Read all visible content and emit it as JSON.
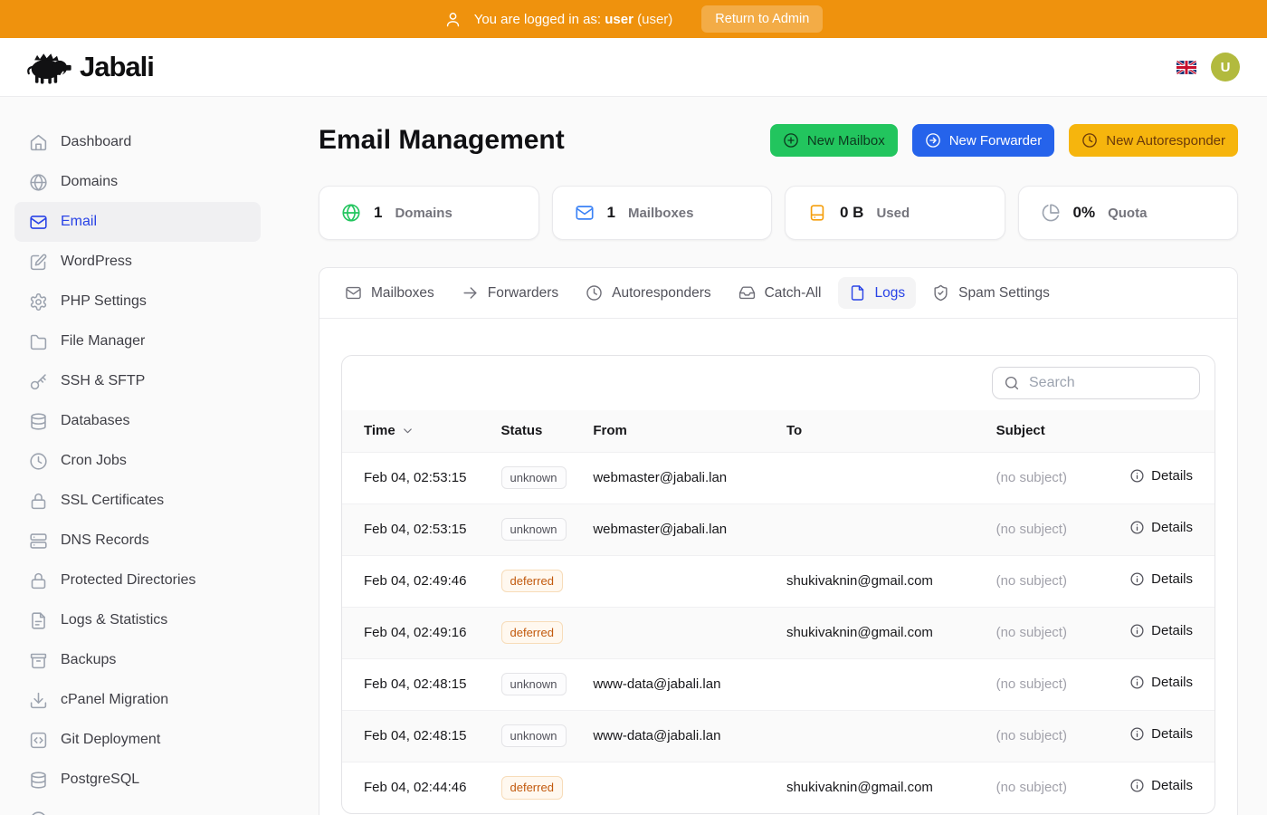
{
  "topbar": {
    "login_prefix": "You are logged in as:",
    "username": "user",
    "role": "(user)",
    "return_button": "Return to Admin"
  },
  "header": {
    "brand": "Jabali",
    "language_flag": "uk-flag",
    "avatar_initial": "U"
  },
  "sidebar": {
    "items": [
      {
        "label": "Dashboard",
        "icon": "home",
        "active": false
      },
      {
        "label": "Domains",
        "icon": "globe",
        "active": false
      },
      {
        "label": "Email",
        "icon": "mail",
        "active": true
      },
      {
        "label": "WordPress",
        "icon": "square-pen",
        "active": false
      },
      {
        "label": "PHP Settings",
        "icon": "settings",
        "active": false
      },
      {
        "label": "File Manager",
        "icon": "folder",
        "active": false
      },
      {
        "label": "SSH & SFTP",
        "icon": "key",
        "active": false
      },
      {
        "label": "Databases",
        "icon": "database",
        "active": false
      },
      {
        "label": "Cron Jobs",
        "icon": "clock",
        "active": false
      },
      {
        "label": "SSL Certificates",
        "icon": "lock",
        "active": false
      },
      {
        "label": "DNS Records",
        "icon": "server",
        "active": false
      },
      {
        "label": "Protected Directories",
        "icon": "lock",
        "active": false
      },
      {
        "label": "Logs & Statistics",
        "icon": "file-text",
        "active": false
      },
      {
        "label": "Backups",
        "icon": "archive",
        "active": false
      },
      {
        "label": "cPanel Migration",
        "icon": "download",
        "active": false
      },
      {
        "label": "Git Deployment",
        "icon": "code",
        "active": false
      },
      {
        "label": "PostgreSQL",
        "icon": "database",
        "active": false
      },
      {
        "label": "",
        "icon": "circle",
        "active": false
      }
    ]
  },
  "main": {
    "title": "Email Management",
    "actions": [
      {
        "label": "New Mailbox",
        "icon": "circle-plus",
        "color": "green"
      },
      {
        "label": "New Forwarder",
        "icon": "circle-arrow-right",
        "color": "blue"
      },
      {
        "label": "New Autoresponder",
        "icon": "clock",
        "color": "amber"
      }
    ],
    "stats": [
      {
        "value": "1",
        "label": "Domains",
        "icon": "globe",
        "icon_color": "#22c55e"
      },
      {
        "value": "1",
        "label": "Mailboxes",
        "icon": "mail",
        "icon_color": "#3b82f6"
      },
      {
        "value": "0 B",
        "label": "Used",
        "icon": "hard-drive",
        "icon_color": "#f59e0b"
      },
      {
        "value": "0%",
        "label": "Quota",
        "icon": "pie",
        "icon_color": "#9ca3af"
      }
    ],
    "tabs": [
      {
        "label": "Mailboxes",
        "icon": "mail",
        "active": false
      },
      {
        "label": "Forwarders",
        "icon": "arrow-right",
        "active": false
      },
      {
        "label": "Autoresponders",
        "icon": "clock",
        "active": false
      },
      {
        "label": "Catch-All",
        "icon": "inbox",
        "active": false
      },
      {
        "label": "Logs",
        "icon": "file",
        "active": true
      },
      {
        "label": "Spam Settings",
        "icon": "shield-check",
        "active": false
      }
    ],
    "search_placeholder": "Search",
    "table": {
      "columns": [
        "Time",
        "Status",
        "From",
        "To",
        "Subject"
      ],
      "details_label": "Details",
      "rows": [
        {
          "time": "Feb 04, 02:53:15",
          "status": "unknown",
          "from": "webmaster@jabali.lan",
          "to": "",
          "subject": "(no subject)"
        },
        {
          "time": "Feb 04, 02:53:15",
          "status": "unknown",
          "from": "webmaster@jabali.lan",
          "to": "",
          "subject": "(no subject)"
        },
        {
          "time": "Feb 04, 02:49:46",
          "status": "deferred",
          "from": "",
          "to": "shukivaknin@gmail.com",
          "subject": "(no subject)"
        },
        {
          "time": "Feb 04, 02:49:16",
          "status": "deferred",
          "from": "",
          "to": "shukivaknin@gmail.com",
          "subject": "(no subject)"
        },
        {
          "time": "Feb 04, 02:48:15",
          "status": "unknown",
          "from": "www-data@jabali.lan",
          "to": "",
          "subject": "(no subject)"
        },
        {
          "time": "Feb 04, 02:48:15",
          "status": "unknown",
          "from": "www-data@jabali.lan",
          "to": "",
          "subject": "(no subject)"
        },
        {
          "time": "Feb 04, 02:44:46",
          "status": "deferred",
          "from": "",
          "to": "shukivaknin@gmail.com",
          "subject": "(no subject)"
        }
      ]
    }
  },
  "colors": {
    "topbar_orange": "#ef920d",
    "button_green": "#22c55e",
    "button_blue": "#2563eb",
    "button_amber": "#f6b50d",
    "accent_blue": "#2943e6",
    "avatar_olive": "#b2ba3e",
    "stat_green": "#22c55e",
    "stat_blue": "#3b82f6",
    "stat_orange": "#f59e0b",
    "stat_gray": "#9ca3af",
    "badge_deferred_text": "#c2590c",
    "badge_unknown_text": "#52525b"
  }
}
